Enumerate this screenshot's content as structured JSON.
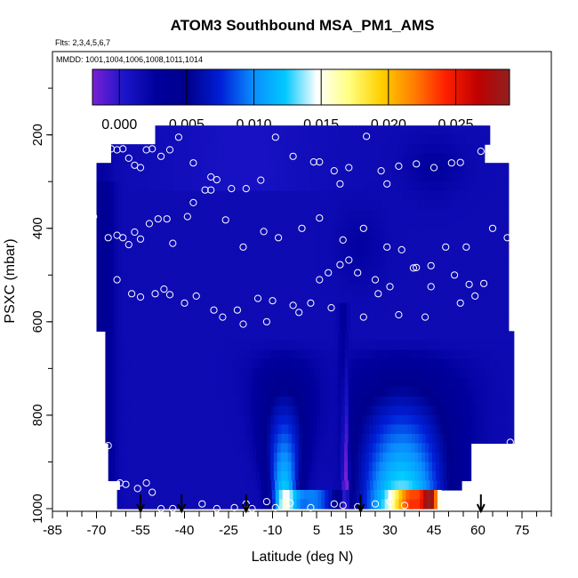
{
  "chart_data": {
    "type": "heatmap",
    "title": "ATOM3 Southbound MSA_PM1_AMS",
    "flights_label": "Flts: 2,3,4,5,6,7",
    "dates_label": "MMDD: 1001,1004,1006,1008,1011,1014",
    "xlabel": "Latitude (deg N)",
    "ylabel": "PSXC (mbar)",
    "xlim": [
      -85,
      85
    ],
    "ylim": [
      1000,
      75
    ],
    "x_ticks": [
      -85,
      -70,
      -55,
      -40,
      -25,
      -10,
      5,
      15,
      30,
      45,
      60,
      75
    ],
    "y_ticks": [
      200,
      400,
      600,
      800,
      1000
    ],
    "colorbar": {
      "min": -0.002,
      "max": 0.029,
      "ticks": [
        0.0,
        0.005,
        0.01,
        0.015,
        0.02,
        0.025
      ],
      "tick_labels": [
        "0.000",
        "0.005",
        "0.010",
        "0.015",
        "0.020",
        "0.025"
      ],
      "colors": [
        "#7a1fd6",
        "#1a14c8",
        "#00009c",
        "#00008c",
        "#001fd8",
        "#0a8cff",
        "#00c8ff",
        "#ffffff",
        "#ffff80",
        "#ffd000",
        "#ff8000",
        "#ff2000",
        "#c00000",
        "#902020"
      ]
    },
    "legend_placement": "top",
    "grid": false,
    "field": {
      "x_range": [
        -70,
        72
      ],
      "p_range": [
        180,
        1000
      ],
      "base_value": 0.0015,
      "features": [
        {
          "x": -6,
          "p_top": 660,
          "value": 0.014,
          "note": "southern-tropics boundary-layer enhancement"
        },
        {
          "x": 34,
          "p_top": 660,
          "value": 0.016,
          "note": "northern-subtropics boundary-layer enhancement"
        },
        {
          "x": 4,
          "p": 990,
          "value": 0.02
        },
        {
          "x": 36,
          "p": 990,
          "value": 0.022
        },
        {
          "x": 45,
          "p": 990,
          "value": 0.025
        }
      ]
    },
    "sample_points": [
      [
        -71,
        230
      ],
      [
        -68,
        250
      ],
      [
        -65,
        230
      ],
      [
        -63,
        232
      ],
      [
        -61,
        230
      ],
      [
        -59,
        250
      ],
      [
        -57,
        265
      ],
      [
        -55,
        270
      ],
      [
        -53,
        232
      ],
      [
        -51,
        230
      ],
      [
        -48,
        246
      ],
      [
        -45,
        232
      ],
      [
        -42,
        205
      ],
      [
        -37,
        260
      ],
      [
        -31,
        290
      ],
      [
        -29,
        296
      ],
      [
        -24,
        315
      ],
      [
        -19,
        315
      ],
      [
        -14,
        297
      ],
      [
        -9,
        205
      ],
      [
        -3,
        246
      ],
      [
        4,
        258
      ],
      [
        6,
        258
      ],
      [
        11,
        277
      ],
      [
        13,
        305
      ],
      [
        16,
        270
      ],
      [
        22,
        203
      ],
      [
        27,
        277
      ],
      [
        29,
        305
      ],
      [
        33,
        267
      ],
      [
        39,
        262
      ],
      [
        45,
        270
      ],
      [
        51,
        260
      ],
      [
        54,
        259
      ],
      [
        61,
        235
      ],
      [
        64,
        233
      ],
      [
        66,
        234
      ],
      [
        -71,
        375
      ],
      [
        -66,
        420
      ],
      [
        -63,
        415
      ],
      [
        -61,
        420
      ],
      [
        -59,
        435
      ],
      [
        -57,
        408
      ],
      [
        -55,
        423
      ],
      [
        -52,
        390
      ],
      [
        -49,
        380
      ],
      [
        -46,
        380
      ],
      [
        -44,
        432
      ],
      [
        -39,
        375
      ],
      [
        -37,
        345
      ],
      [
        -33,
        318
      ],
      [
        -31,
        318
      ],
      [
        -26,
        382
      ],
      [
        -20,
        440
      ],
      [
        -13,
        407
      ],
      [
        -8,
        420
      ],
      [
        0,
        400
      ],
      [
        6,
        378
      ],
      [
        14,
        425
      ],
      [
        21,
        400
      ],
      [
        29,
        440
      ],
      [
        34,
        446
      ],
      [
        39,
        484
      ],
      [
        44,
        480
      ],
      [
        49,
        440
      ],
      [
        56,
        440
      ],
      [
        65,
        400
      ],
      [
        70,
        420
      ],
      [
        -63,
        510
      ],
      [
        -58,
        540
      ],
      [
        -55,
        547
      ],
      [
        -50,
        540
      ],
      [
        -47,
        530
      ],
      [
        -45,
        542
      ],
      [
        -40,
        560
      ],
      [
        -36,
        545
      ],
      [
        -30,
        575
      ],
      [
        -27,
        590
      ],
      [
        -22,
        575
      ],
      [
        -15,
        550
      ],
      [
        -10,
        555
      ],
      [
        -3,
        565
      ],
      [
        3,
        560
      ],
      [
        6,
        510
      ],
      [
        9,
        495
      ],
      [
        13,
        478
      ],
      [
        16,
        468
      ],
      [
        19,
        495
      ],
      [
        25,
        510
      ],
      [
        30,
        525
      ],
      [
        38,
        485
      ],
      [
        44,
        525
      ],
      [
        52,
        500
      ],
      [
        57,
        520
      ],
      [
        62,
        518
      ],
      [
        -20,
        605
      ],
      [
        -12,
        600
      ],
      [
        -1,
        580
      ],
      [
        10,
        570
      ],
      [
        21,
        590
      ],
      [
        26,
        540
      ],
      [
        33,
        585
      ],
      [
        42,
        590
      ],
      [
        54,
        560
      ],
      [
        59,
        545
      ],
      [
        -66,
        865
      ],
      [
        -71,
        870
      ],
      [
        -68,
        872
      ],
      [
        66,
        955
      ],
      [
        71,
        858
      ],
      [
        -65,
        955
      ],
      [
        -62,
        945
      ],
      [
        -60,
        948
      ],
      [
        -56,
        957
      ],
      [
        -53,
        945
      ],
      [
        -51,
        965
      ],
      [
        -48,
        1000
      ],
      [
        -44,
        1000
      ],
      [
        -34,
        990
      ],
      [
        -29,
        1000
      ],
      [
        -23,
        998
      ],
      [
        -19,
        990
      ],
      [
        -17,
        1000
      ],
      [
        -12,
        985
      ],
      [
        -9,
        998
      ],
      [
        -4,
        988
      ],
      [
        3,
        998
      ],
      [
        11,
        990
      ],
      [
        14,
        993
      ],
      [
        19,
        996
      ],
      [
        25,
        990
      ],
      [
        30,
        985
      ],
      [
        35,
        993
      ]
    ],
    "flight_markers": [
      -55,
      -41,
      -19,
      20,
      61
    ]
  }
}
